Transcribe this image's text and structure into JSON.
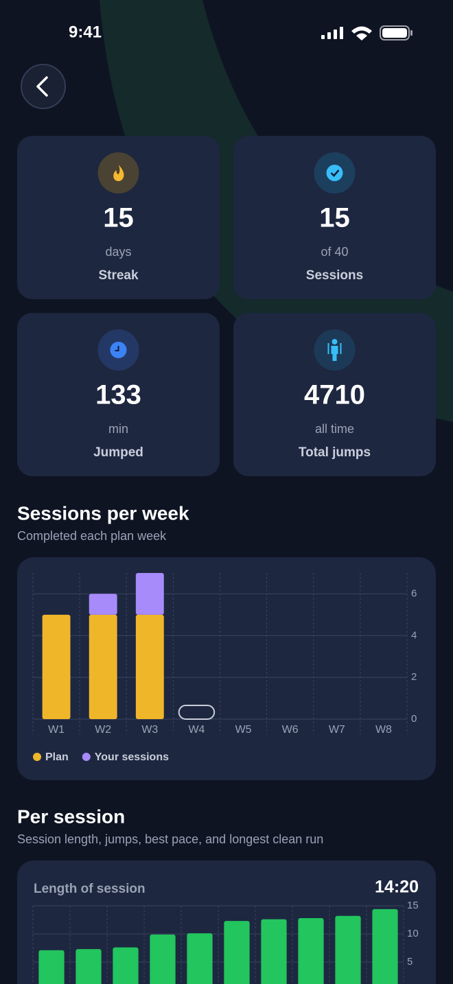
{
  "status_bar": {
    "time": "9:41"
  },
  "stats": [
    {
      "value": 15,
      "unit": "days",
      "label": "Streak"
    },
    {
      "value": 15,
      "unit": "of 40",
      "label": "Sessions"
    },
    {
      "value": 133,
      "unit": "min",
      "label": "Jumped"
    },
    {
      "value": 4710,
      "unit": "all time",
      "label": "Total jumps"
    }
  ],
  "chart_data": [
    {
      "type": "bar",
      "stacked": true,
      "title": "Sessions per week",
      "subtitle": "Completed each plan week",
      "categories": [
        "W1",
        "W2",
        "W3",
        "W4",
        "W5",
        "W6",
        "W7",
        "W8"
      ],
      "series": [
        {
          "name": "Plan",
          "color": "#f0b62a",
          "values": [
            5,
            5,
            5,
            0,
            null,
            null,
            null,
            null
          ]
        },
        {
          "name": "Your sessions",
          "color": "#a78bfa",
          "values": [
            0,
            1,
            2,
            0,
            null,
            null,
            null,
            null
          ]
        }
      ],
      "ylim": [
        0,
        7
      ],
      "yticks": [
        0,
        2,
        4,
        6
      ],
      "grid": true
    },
    {
      "type": "bar",
      "title": "Per session",
      "subtitle": "Session length, jumps, best pace, and longest clean run",
      "panel_title": "Length of session",
      "headline": "14:20",
      "values": [
        7.1,
        7.3,
        7.6,
        9.9,
        10.1,
        12.3,
        12.6,
        12.8,
        13.2,
        14.4
      ],
      "color": "#22c55e",
      "ylim": [
        0,
        15
      ],
      "yticks": [
        5,
        10,
        15
      ],
      "grid": true
    }
  ]
}
